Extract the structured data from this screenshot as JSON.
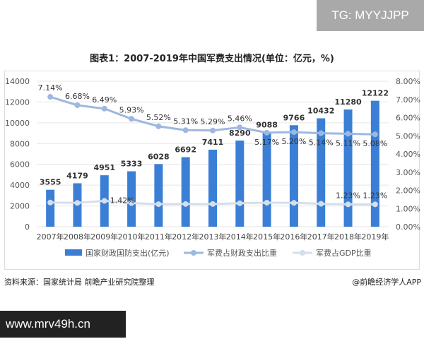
{
  "watermark": "TG: MYYJJPP",
  "source": "资料来源：国家统计局 前瞻产业研究院整理",
  "credit": "@前瞻经济学人APP",
  "url_banner": "www.mrv49h.cn",
  "chart_data": {
    "type": "bar",
    "title": "图表1：2007-2019年中国军费支出情况(单位：亿元，%)",
    "categories": [
      "2007年",
      "2008年",
      "2009年",
      "2010年",
      "2011年",
      "2012年",
      "2013年",
      "2014年",
      "2015年",
      "2016年",
      "2017年",
      "2018年",
      "2019年"
    ],
    "y_left": {
      "range": [
        0,
        14000
      ],
      "ticks": [
        "0",
        "2000",
        "4000",
        "6000",
        "8000",
        "10000",
        "12000",
        "14000"
      ]
    },
    "y_right": {
      "range": [
        0,
        8
      ],
      "ticks": [
        "0.00%",
        "1.00%",
        "2.00%",
        "3.00%",
        "4.00%",
        "5.00%",
        "6.00%",
        "7.00%",
        "8.00%"
      ]
    },
    "grid": true,
    "legend_position": "bottom",
    "colors": {
      "bar": "#3a7fd5",
      "ratio_line": "#9db8e0",
      "gdp_line": "#d5deeb"
    },
    "series": [
      {
        "name": "国家财政国防支出(亿元)",
        "type": "bar",
        "axis": "left",
        "values": [
          3555,
          4179,
          4951,
          5333,
          6028,
          6692,
          7411,
          8290,
          9088,
          9766,
          10432,
          11280,
          12122
        ],
        "labels": [
          "3555",
          "4179",
          "4951",
          "5333",
          "6028",
          "6692",
          "7411",
          "8290",
          "9088",
          "9766",
          "10432",
          "11280",
          "12122"
        ]
      },
      {
        "name": "军费占财政支出比重",
        "type": "line",
        "axis": "right",
        "values": [
          7.14,
          6.68,
          6.49,
          5.93,
          5.52,
          5.31,
          5.29,
          5.46,
          5.17,
          5.2,
          5.14,
          5.11,
          5.08
        ],
        "labels": [
          "7.14%",
          "6.68%",
          "6.49%",
          "5.93%",
          "5.52%",
          "5.31%",
          "5.29%",
          "5.46%",
          "5.17%",
          "5.20%",
          "5.14%",
          "5.11%",
          "5.08%"
        ]
      },
      {
        "name": "军费占GDP比重",
        "type": "line",
        "axis": "right",
        "values": [
          1.33,
          1.31,
          1.42,
          1.3,
          1.24,
          1.25,
          1.25,
          1.29,
          1.32,
          1.31,
          1.26,
          1.23,
          1.23
        ],
        "labels": [
          null,
          null,
          "1.42%",
          null,
          null,
          null,
          null,
          null,
          null,
          null,
          null,
          "1.23%",
          "1.23%"
        ]
      }
    ]
  }
}
